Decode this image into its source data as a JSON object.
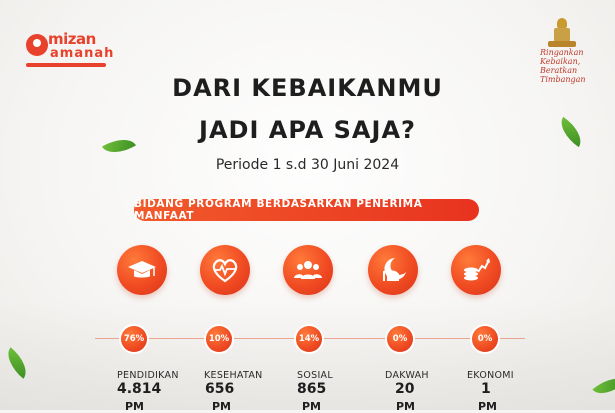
{
  "brand": {
    "logo_left_line1": "mizan",
    "logo_left_line2": "amanah",
    "logo_right_slogan": "Ringankan Kebaikan, Beratkan Timbangan"
  },
  "title_line1": "Dari Kebaikanmu",
  "title_line2": "Jadi Apa Saja?",
  "period": "Periode 1 s.d 30 Juni 2024",
  "banner": "Bidang Program Berdasarkan Penerima Manfaat",
  "programs": [
    {
      "label": "Pendidikan",
      "percent": "76%",
      "value": "4.814",
      "unit": "PM",
      "icon": "graduation-cap-icon"
    },
    {
      "label": "Kesehatan",
      "percent": "10%",
      "value": "656",
      "unit": "PM",
      "icon": "heart-pulse-icon"
    },
    {
      "label": "Sosial",
      "percent": "14%",
      "value": "865",
      "unit": "PM",
      "icon": "people-group-icon"
    },
    {
      "label": "Dakwah",
      "percent": "0%",
      "value": "20",
      "unit": "PM",
      "icon": "mosque-crescent-icon"
    },
    {
      "label": "Ekonomi",
      "percent": "0%",
      "value": "1",
      "unit": "PM",
      "icon": "coins-growth-icon"
    }
  ],
  "colors": {
    "accent": "#ee4a22",
    "text": "#1e1e1e",
    "leaf": "#4fa52c"
  }
}
